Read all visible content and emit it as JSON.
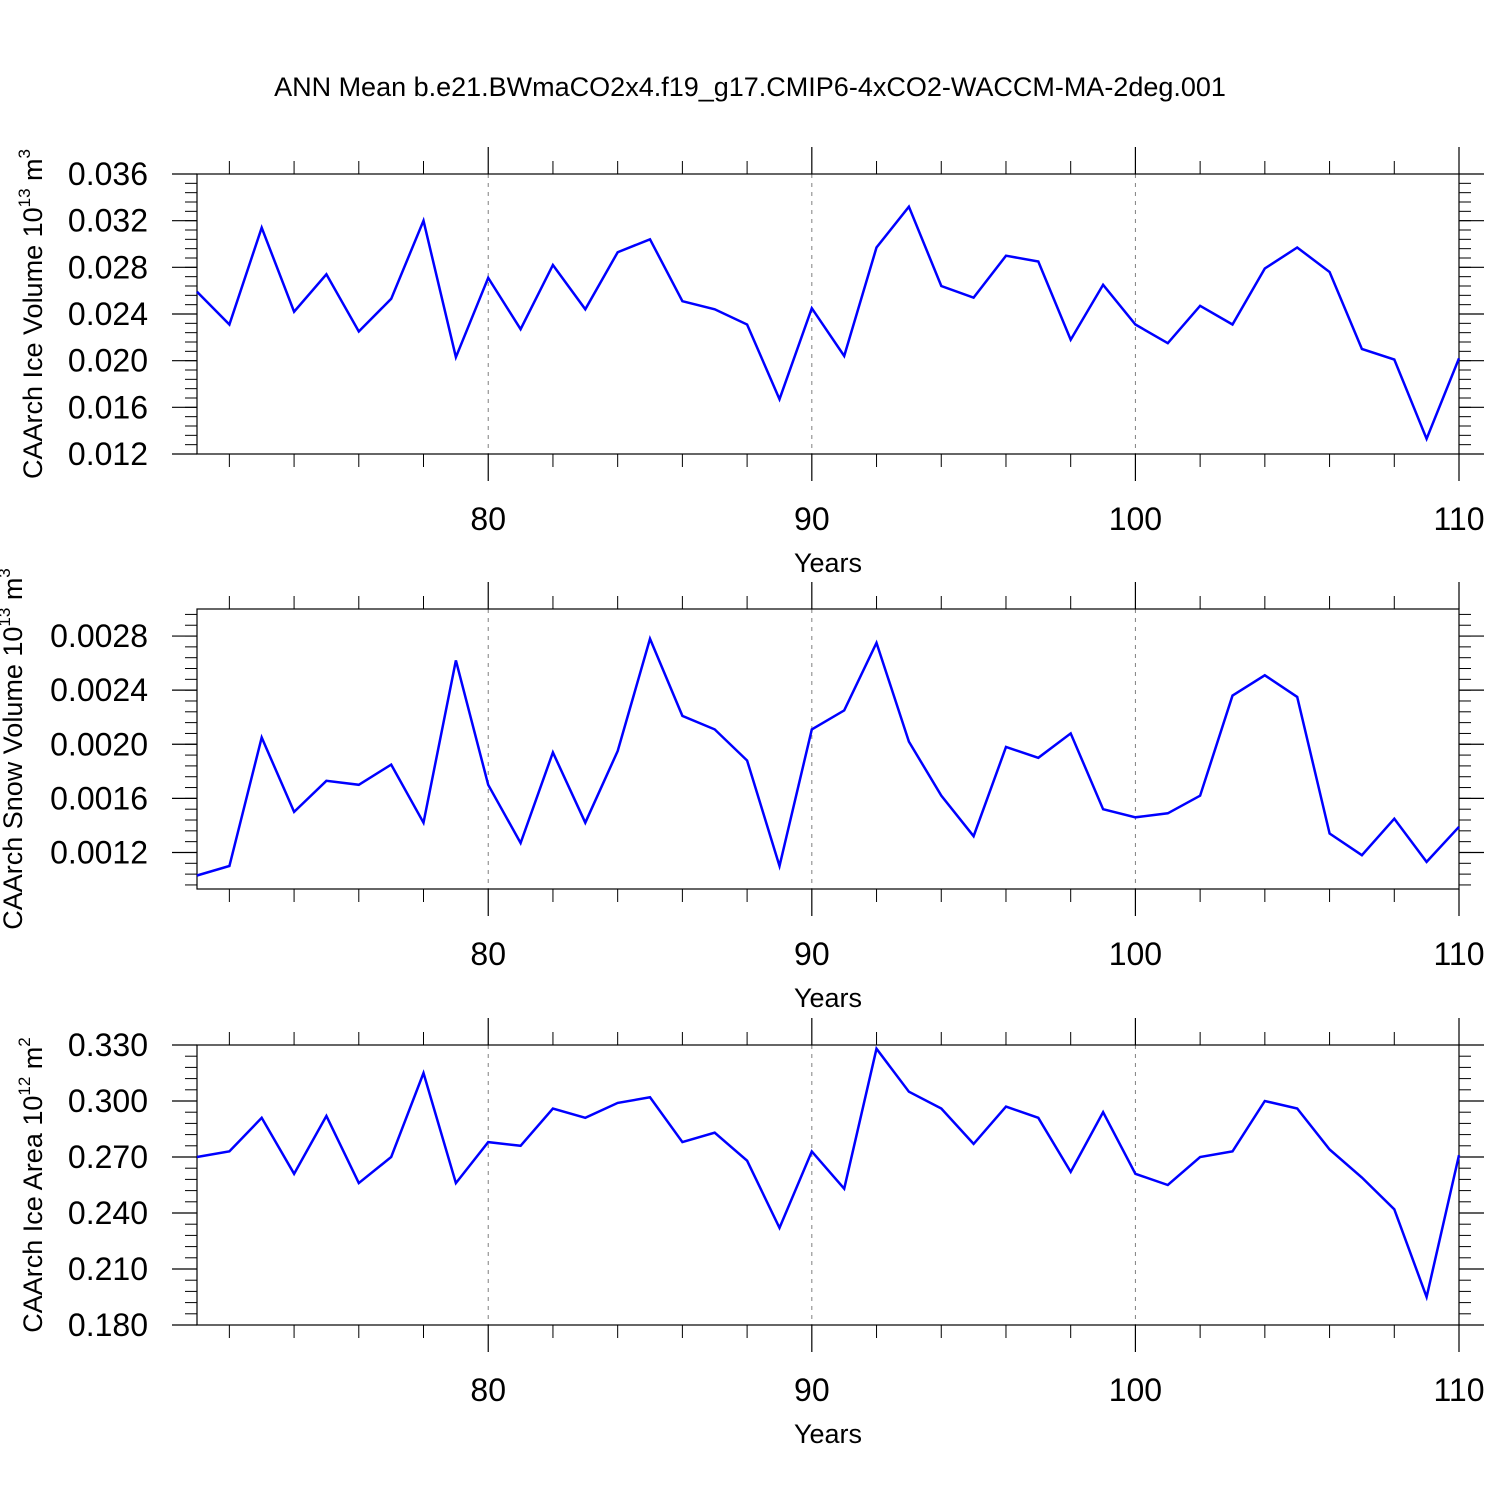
{
  "title": "ANN Mean b.e21.BWmaCO2x4.f19_g17.CMIP6-4xCO2-WACCM-MA-2deg.001",
  "line_color": "#0000ff",
  "chart_data": [
    {
      "type": "line",
      "ylabel": "CAArch Ice Volume 10",
      "ylabel_exp": "13",
      "ylabel_unit": " m",
      "ylabel_unit_exp": "3",
      "xlabel": "Years",
      "xlim": [
        71,
        110
      ],
      "ylim": [
        0.012,
        0.036
      ],
      "yticks": [
        "0.012",
        "0.016",
        "0.020",
        "0.024",
        "0.028",
        "0.032",
        "0.036"
      ],
      "xticks": [
        "80",
        "90",
        "100",
        "110"
      ],
      "gridlines_x": [
        80,
        90,
        100
      ],
      "x": [
        71,
        72,
        73,
        74,
        75,
        76,
        77,
        78,
        79,
        80,
        81,
        82,
        83,
        84,
        85,
        86,
        87,
        88,
        89,
        90,
        91,
        92,
        93,
        94,
        95,
        96,
        97,
        98,
        99,
        100,
        101,
        102,
        103,
        104,
        105,
        106,
        107,
        108,
        109,
        110
      ],
      "values": [
        0.0259,
        0.0231,
        0.0314,
        0.0242,
        0.0274,
        0.0225,
        0.0253,
        0.032,
        0.0203,
        0.0271,
        0.0227,
        0.0282,
        0.0244,
        0.0293,
        0.0304,
        0.0251,
        0.0244,
        0.0231,
        0.0167,
        0.0245,
        0.0204,
        0.0297,
        0.0332,
        0.0264,
        0.0254,
        0.029,
        0.0285,
        0.0218,
        0.0265,
        0.0231,
        0.0215,
        0.0247,
        0.0231,
        0.0279,
        0.0297,
        0.0276,
        0.021,
        0.0201,
        0.0133,
        0.0202
      ]
    },
    {
      "type": "line",
      "ylabel": "CAArch Snow Volume 10",
      "ylabel_exp": "13",
      "ylabel_unit": " m",
      "ylabel_unit_exp": "3",
      "xlabel": "Years",
      "xlim": [
        71,
        110
      ],
      "ylim": [
        0.00093,
        0.003
      ],
      "yticks": [
        "0.0012",
        "0.0016",
        "0.0020",
        "0.0024",
        "0.0028"
      ],
      "ytick_values": [
        0.0012,
        0.0016,
        0.002,
        0.0024,
        0.0028
      ],
      "xticks": [
        "80",
        "90",
        "100",
        "110"
      ],
      "gridlines_x": [
        80,
        90,
        100
      ],
      "x": [
        71,
        72,
        73,
        74,
        75,
        76,
        77,
        78,
        79,
        80,
        81,
        82,
        83,
        84,
        85,
        86,
        87,
        88,
        89,
        90,
        91,
        92,
        93,
        94,
        95,
        96,
        97,
        98,
        99,
        100,
        101,
        102,
        103,
        104,
        105,
        106,
        107,
        108,
        109,
        110
      ],
      "values": [
        0.00103,
        0.0011,
        0.00205,
        0.0015,
        0.00173,
        0.0017,
        0.00185,
        0.00142,
        0.00262,
        0.0017,
        0.00127,
        0.00194,
        0.00142,
        0.00195,
        0.00278,
        0.00221,
        0.00211,
        0.00188,
        0.0011,
        0.00211,
        0.00225,
        0.00275,
        0.00202,
        0.00162,
        0.00132,
        0.00198,
        0.0019,
        0.00208,
        0.00152,
        0.00146,
        0.00149,
        0.00162,
        0.00236,
        0.00251,
        0.00235,
        0.00134,
        0.00118,
        0.00145,
        0.00113,
        0.00139
      ]
    },
    {
      "type": "line",
      "ylabel": "CAArch Ice Area 10",
      "ylabel_exp": "12",
      "ylabel_unit": " m",
      "ylabel_unit_exp": "2",
      "xlabel": "Years",
      "xlim": [
        71,
        110
      ],
      "ylim": [
        0.18,
        0.33
      ],
      "yticks": [
        "0.180",
        "0.210",
        "0.240",
        "0.270",
        "0.300",
        "0.330"
      ],
      "xticks": [
        "80",
        "90",
        "100",
        "110"
      ],
      "gridlines_x": [
        80,
        90,
        100
      ],
      "x": [
        71,
        72,
        73,
        74,
        75,
        76,
        77,
        78,
        79,
        80,
        81,
        82,
        83,
        84,
        85,
        86,
        87,
        88,
        89,
        90,
        91,
        92,
        93,
        94,
        95,
        96,
        97,
        98,
        99,
        100,
        101,
        102,
        103,
        104,
        105,
        106,
        107,
        108,
        109,
        110
      ],
      "values": [
        0.27,
        0.273,
        0.291,
        0.261,
        0.292,
        0.256,
        0.27,
        0.315,
        0.256,
        0.278,
        0.276,
        0.296,
        0.291,
        0.299,
        0.302,
        0.278,
        0.283,
        0.268,
        0.232,
        0.273,
        0.253,
        0.328,
        0.305,
        0.296,
        0.277,
        0.297,
        0.291,
        0.262,
        0.294,
        0.261,
        0.255,
        0.27,
        0.273,
        0.3,
        0.296,
        0.274,
        0.259,
        0.242,
        0.195,
        0.271
      ]
    }
  ]
}
